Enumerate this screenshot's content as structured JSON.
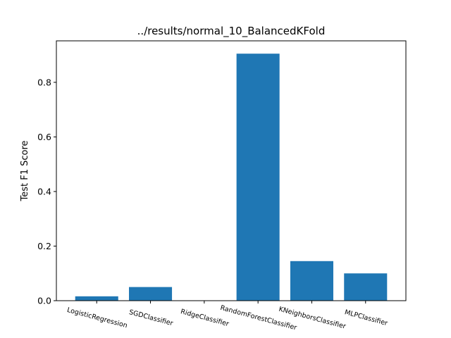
{
  "chart_data": {
    "type": "bar",
    "title": "../results/normal_10_BalancedKFold",
    "xlabel": "",
    "ylabel": "Test F1 Score",
    "categories": [
      "LogisticRegression",
      "SGDClassifier",
      "RidgeClassifier",
      "RandomForestClassifier",
      "KNeighborsClassifier",
      "MLPClassifier"
    ],
    "values": [
      0.016,
      0.05,
      0.0,
      0.905,
      0.145,
      0.1
    ],
    "ylim": [
      0,
      0.952
    ],
    "yticks": [
      0.0,
      0.2,
      0.4,
      0.6,
      0.8
    ],
    "ytick_labels": [
      "0.0",
      "0.2",
      "0.4",
      "0.6",
      "0.8"
    ],
    "bar_color": "#1f77b4",
    "xtick_rotation": 15,
    "grid": false,
    "legend": "none"
  }
}
